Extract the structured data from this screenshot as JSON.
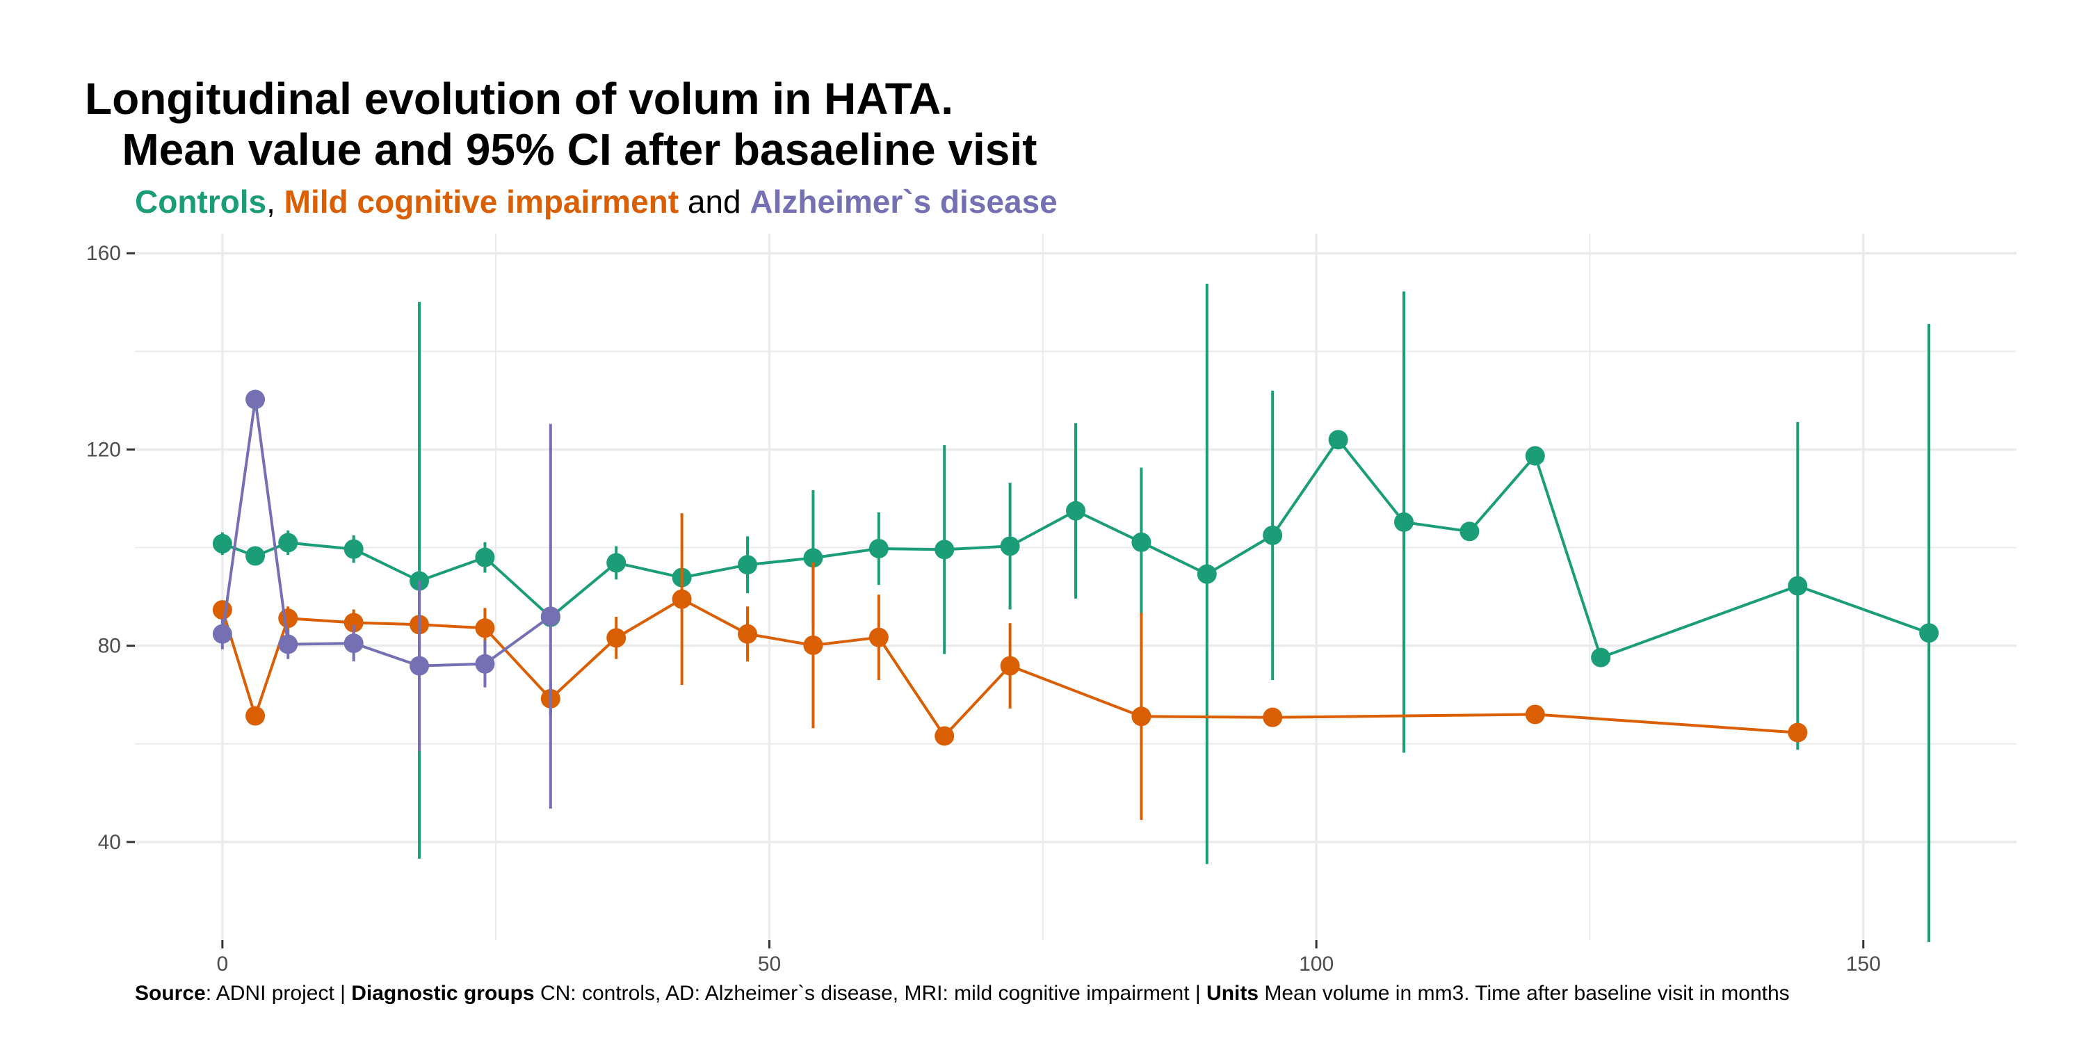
{
  "title": "Longitudinal evolution of volum in HATA.\n   Mean value and 95% CI after basaeline visit",
  "subtitle": {
    "controls": "Controls",
    "sep1": ", ",
    "mci": "Mild cognitive impairment",
    "sep2": " and ",
    "ad": "Alzheimer`s disease"
  },
  "caption": {
    "source_label": "Source",
    "source_text": ": ADNI project | ",
    "groups_label": "Diagnostic groups",
    "groups_text": " CN: controls, AD: Alzheimer`s disease, MRI: mild cognitive impairment | ",
    "units_label": "Units",
    "units_text": " Mean volume in mm3. Time after baseline visit in months"
  },
  "colors": {
    "controls": "#1b9e77",
    "mci": "#d95f02",
    "ad": "#7570b3",
    "grid": "#ebebeb",
    "axis_text": "#4d4d4d"
  },
  "chart_data": {
    "type": "line",
    "xlim": [
      -8,
      164
    ],
    "ylim": [
      20,
      164
    ],
    "x_ticks": [
      0,
      50,
      100,
      150
    ],
    "y_ticks": [
      40,
      80,
      120,
      160
    ],
    "grid": true,
    "legend": "subtitle",
    "series": [
      {
        "name": "Controls",
        "color_key": "controls",
        "points": [
          {
            "x": 0,
            "y": 100.8,
            "lo": 98.5,
            "hi": 103.1
          },
          {
            "x": 3,
            "y": 98.3,
            "lo": 97.3,
            "hi": 99.3
          },
          {
            "x": 6,
            "y": 101.0,
            "lo": 98.5,
            "hi": 103.5
          },
          {
            "x": 12,
            "y": 99.7,
            "lo": 96.9,
            "hi": 102.5
          },
          {
            "x": 18,
            "y": 93.2,
            "lo": 36.6,
            "hi": 150.1
          },
          {
            "x": 24,
            "y": 98.0,
            "lo": 94.9,
            "hi": 101.1
          },
          {
            "x": 30,
            "y": 85.8,
            "lo": 85.0,
            "hi": 86.6
          },
          {
            "x": 36,
            "y": 96.9,
            "lo": 93.5,
            "hi": 100.3
          },
          {
            "x": 42,
            "y": 93.9,
            "lo": 92.0,
            "hi": 95.8
          },
          {
            "x": 48,
            "y": 96.5,
            "lo": 90.7,
            "hi": 102.3
          },
          {
            "x": 54,
            "y": 97.9,
            "lo": 84.0,
            "hi": 111.7
          },
          {
            "x": 60,
            "y": 99.8,
            "lo": 92.4,
            "hi": 107.2
          },
          {
            "x": 66,
            "y": 99.6,
            "lo": 78.3,
            "hi": 120.9
          },
          {
            "x": 72,
            "y": 100.3,
            "lo": 87.4,
            "hi": 113.2
          },
          {
            "x": 78,
            "y": 107.5,
            "lo": 89.6,
            "hi": 125.4
          },
          {
            "x": 84,
            "y": 101.1,
            "lo": 85.9,
            "hi": 116.3
          },
          {
            "x": 90,
            "y": 94.6,
            "lo": 35.5,
            "hi": 153.8
          },
          {
            "x": 96,
            "y": 102.5,
            "lo": 73.0,
            "hi": 132.0
          },
          {
            "x": 102,
            "y": 122.0,
            "lo": 122.0,
            "hi": 122.0
          },
          {
            "x": 108,
            "y": 105.2,
            "lo": 58.2,
            "hi": 152.2
          },
          {
            "x": 114,
            "y": 103.3,
            "lo": 103.3,
            "hi": 103.3
          },
          {
            "x": 120,
            "y": 118.7,
            "lo": 118.7,
            "hi": 118.7
          },
          {
            "x": 126,
            "y": 77.6,
            "lo": 77.6,
            "hi": 77.6
          },
          {
            "x": 144,
            "y": 92.2,
            "lo": 58.8,
            "hi": 125.6
          },
          {
            "x": 156,
            "y": 82.6,
            "lo": 19.6,
            "hi": 145.6
          }
        ]
      },
      {
        "name": "Mild cognitive impairment",
        "color_key": "mci",
        "points": [
          {
            "x": 0,
            "y": 87.3,
            "lo": 85.5,
            "hi": 89.1
          },
          {
            "x": 3,
            "y": 65.7,
            "lo": 65.7,
            "hi": 65.7
          },
          {
            "x": 6,
            "y": 85.6,
            "lo": 83.2,
            "hi": 88.0
          },
          {
            "x": 12,
            "y": 84.7,
            "lo": 82.0,
            "hi": 87.4
          },
          {
            "x": 18,
            "y": 84.3,
            "lo": 82.0,
            "hi": 86.6
          },
          {
            "x": 24,
            "y": 83.6,
            "lo": 79.5,
            "hi": 87.7
          },
          {
            "x": 30,
            "y": 69.2,
            "lo": 66.0,
            "hi": 72.4
          },
          {
            "x": 36,
            "y": 81.6,
            "lo": 77.3,
            "hi": 85.9
          },
          {
            "x": 42,
            "y": 89.5,
            "lo": 72.0,
            "hi": 107.0
          },
          {
            "x": 48,
            "y": 82.4,
            "lo": 76.8,
            "hi": 88.0
          },
          {
            "x": 54,
            "y": 80.1,
            "lo": 63.2,
            "hi": 97.0
          },
          {
            "x": 60,
            "y": 81.7,
            "lo": 73.0,
            "hi": 90.4
          },
          {
            "x": 66,
            "y": 61.6,
            "lo": 61.6,
            "hi": 61.6
          },
          {
            "x": 72,
            "y": 75.9,
            "lo": 67.2,
            "hi": 84.6
          },
          {
            "x": 84,
            "y": 65.6,
            "lo": 44.5,
            "hi": 86.7
          },
          {
            "x": 96,
            "y": 65.4,
            "lo": 65.4,
            "hi": 65.4
          },
          {
            "x": 120,
            "y": 66.0,
            "lo": 66.0,
            "hi": 66.0
          },
          {
            "x": 144,
            "y": 62.3,
            "lo": 62.3,
            "hi": 62.3
          }
        ]
      },
      {
        "name": "Alzheimer`s disease",
        "color_key": "ad",
        "points": [
          {
            "x": 0,
            "y": 82.4,
            "lo": 79.3,
            "hi": 85.5
          },
          {
            "x": 3,
            "y": 130.2,
            "lo": 130.2,
            "hi": 130.2
          },
          {
            "x": 6,
            "y": 80.3,
            "lo": 77.3,
            "hi": 83.3
          },
          {
            "x": 12,
            "y": 80.5,
            "lo": 76.8,
            "hi": 84.2
          },
          {
            "x": 18,
            "y": 75.9,
            "lo": 58.5,
            "hi": 93.3
          },
          {
            "x": 24,
            "y": 76.3,
            "lo": 71.5,
            "hi": 81.1
          },
          {
            "x": 30,
            "y": 86.0,
            "lo": 46.8,
            "hi": 125.2
          }
        ]
      }
    ]
  }
}
